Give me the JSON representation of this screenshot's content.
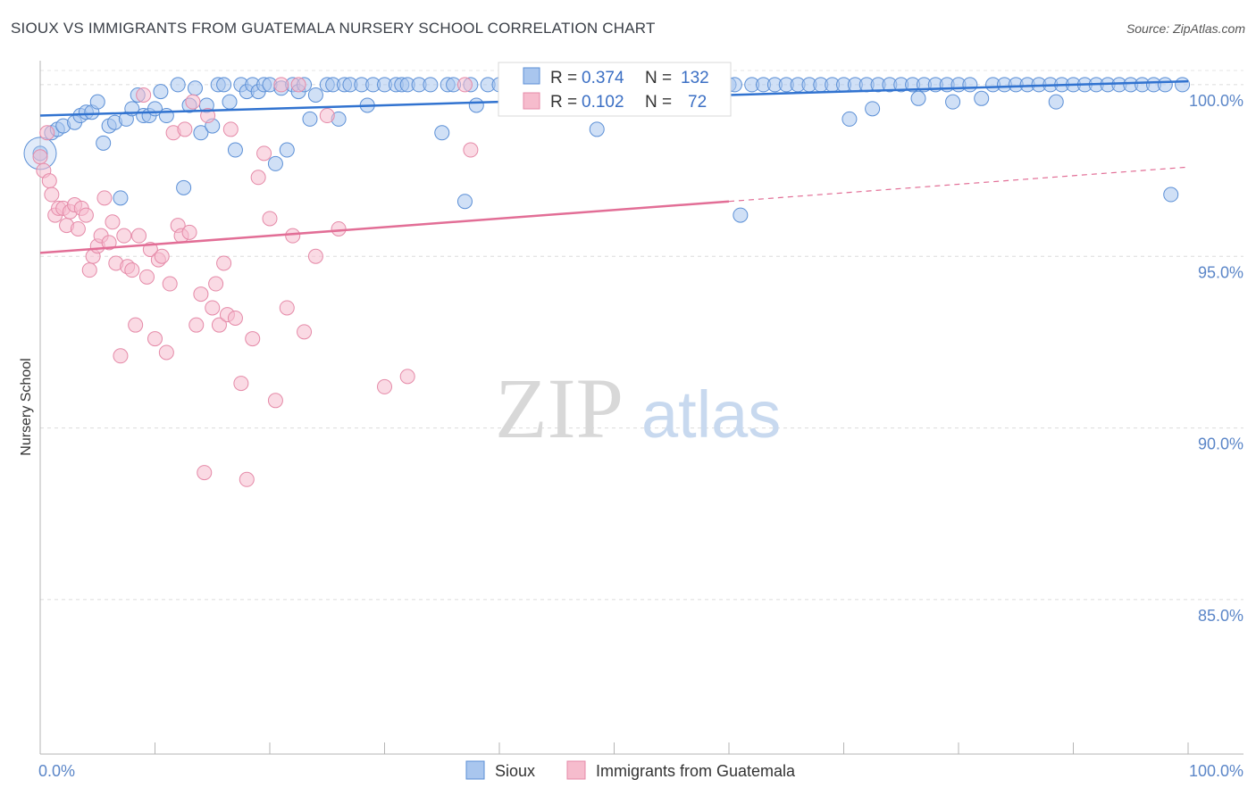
{
  "title": "SIOUX VS IMMIGRANTS FROM GUATEMALA NURSERY SCHOOL CORRELATION CHART",
  "source": "Source: ZipAtlas.com",
  "watermark": {
    "zip": "ZIP",
    "atlas": "atlas"
  },
  "stats": {
    "sioux": {
      "r_label": "R =",
      "r_value": "0.374",
      "n_label": "N =",
      "n_value": "132"
    },
    "guatemala": {
      "r_label": "R =",
      "r_value": "0.102",
      "n_label": "N =",
      "n_value": "72"
    }
  },
  "chart_data": {
    "type": "scatter",
    "title": "SIOUX VS IMMIGRANTS FROM GUATEMALA NURSERY SCHOOL CORRELATION CHART",
    "xlabel": "",
    "ylabel": "Nursery School",
    "xlim": [
      0,
      100
    ],
    "ylim": [
      80.5,
      100.7
    ],
    "x_tick_labels": [
      "0.0%",
      "100.0%"
    ],
    "y_ticks": [
      100,
      95,
      90,
      85
    ],
    "y_tick_labels": [
      "100.0%",
      "95.0%",
      "90.0%",
      "85.0%"
    ],
    "grid": "horizontal-dashed",
    "legend": [
      "Sioux",
      "Immigrants from Guatemala"
    ],
    "colors": {
      "sioux": "#5b8fd6",
      "sioux_fill": "#a9c6ee",
      "sioux_line": "#3173d0",
      "guatemala": "#e58aa8",
      "guatemala_fill": "#f6bccd",
      "guatemala_line": "#e26e96",
      "tick": "#5b86c8"
    },
    "series": [
      {
        "name": "Sioux",
        "trend": {
          "x0": 0,
          "y0": 99.1,
          "x1": 100,
          "y1": 100.1
        },
        "points": [
          [
            0,
            98.0
          ],
          [
            1,
            98.6
          ],
          [
            1.5,
            98.7
          ],
          [
            2,
            98.8
          ],
          [
            3,
            98.9
          ],
          [
            3.5,
            99.1
          ],
          [
            4,
            99.2
          ],
          [
            4.5,
            99.2
          ],
          [
            5,
            99.5
          ],
          [
            5.5,
            98.3
          ],
          [
            6,
            98.8
          ],
          [
            6.5,
            98.9
          ],
          [
            7,
            96.7
          ],
          [
            7.5,
            99.0
          ],
          [
            8,
            99.3
          ],
          [
            8.5,
            99.7
          ],
          [
            9,
            99.1
          ],
          [
            9.5,
            99.1
          ],
          [
            10,
            99.3
          ],
          [
            10.5,
            99.8
          ],
          [
            11,
            99.1
          ],
          [
            12,
            100.0
          ],
          [
            12.5,
            97.0
          ],
          [
            13,
            99.4
          ],
          [
            13.5,
            99.9
          ],
          [
            14,
            98.6
          ],
          [
            14.5,
            99.4
          ],
          [
            15,
            98.8
          ],
          [
            15.5,
            100.0
          ],
          [
            16,
            100.0
          ],
          [
            16.5,
            99.5
          ],
          [
            17,
            98.1
          ],
          [
            17.5,
            100.0
          ],
          [
            18,
            99.8
          ],
          [
            18.5,
            100.0
          ],
          [
            19,
            99.8
          ],
          [
            19.5,
            100.0
          ],
          [
            20,
            100.0
          ],
          [
            20.5,
            97.7
          ],
          [
            21,
            99.9
          ],
          [
            21.5,
            98.1
          ],
          [
            22,
            100.0
          ],
          [
            22.5,
            99.8
          ],
          [
            23,
            100.0
          ],
          [
            23.5,
            99.0
          ],
          [
            24,
            99.7
          ],
          [
            25,
            100.0
          ],
          [
            25.5,
            100.0
          ],
          [
            26,
            99.0
          ],
          [
            26.5,
            100.0
          ],
          [
            27,
            100.0
          ],
          [
            28,
            100.0
          ],
          [
            28.5,
            99.4
          ],
          [
            29,
            100.0
          ],
          [
            30,
            100.0
          ],
          [
            31,
            100.0
          ],
          [
            31.5,
            100.0
          ],
          [
            32,
            100.0
          ],
          [
            33,
            100.0
          ],
          [
            34,
            100.0
          ],
          [
            35,
            98.6
          ],
          [
            35.5,
            100.0
          ],
          [
            36,
            100.0
          ],
          [
            37,
            96.6
          ],
          [
            37.5,
            100.0
          ],
          [
            38,
            99.4
          ],
          [
            39,
            100.0
          ],
          [
            40,
            100.0
          ],
          [
            41,
            100.0
          ],
          [
            42,
            100.0
          ],
          [
            43,
            100.0
          ],
          [
            44,
            100.0
          ],
          [
            45,
            99.4
          ],
          [
            46,
            100.0
          ],
          [
            47,
            99.4
          ],
          [
            48,
            100.0
          ],
          [
            48.5,
            98.7
          ],
          [
            50,
            100.0
          ],
          [
            51,
            100.0
          ],
          [
            52,
            100.0
          ],
          [
            53,
            100.0
          ],
          [
            54,
            100.0
          ],
          [
            55,
            100.0
          ],
          [
            56,
            100.0
          ],
          [
            57,
            100.0
          ],
          [
            58,
            100.0
          ],
          [
            59,
            100.0
          ],
          [
            60,
            100.0
          ],
          [
            60.5,
            100.0
          ],
          [
            61,
            96.2
          ],
          [
            62,
            100.0
          ],
          [
            63,
            100.0
          ],
          [
            64,
            100.0
          ],
          [
            65,
            100.0
          ],
          [
            66,
            100.0
          ],
          [
            67,
            100.0
          ],
          [
            68,
            100.0
          ],
          [
            69,
            100.0
          ],
          [
            70,
            100.0
          ],
          [
            70.5,
            99.0
          ],
          [
            71,
            100.0
          ],
          [
            72,
            100.0
          ],
          [
            72.5,
            99.3
          ],
          [
            73,
            100.0
          ],
          [
            74,
            100.0
          ],
          [
            75,
            100.0
          ],
          [
            76,
            100.0
          ],
          [
            76.5,
            99.6
          ],
          [
            77,
            100.0
          ],
          [
            78,
            100.0
          ],
          [
            79,
            100.0
          ],
          [
            79.5,
            99.5
          ],
          [
            80,
            100.0
          ],
          [
            81,
            100.0
          ],
          [
            82,
            99.6
          ],
          [
            83,
            100.0
          ],
          [
            84,
            100.0
          ],
          [
            85,
            100.0
          ],
          [
            86,
            100.0
          ],
          [
            87,
            100.0
          ],
          [
            88,
            100.0
          ],
          [
            88.5,
            99.5
          ],
          [
            89,
            100.0
          ],
          [
            90,
            100.0
          ],
          [
            91,
            100.0
          ],
          [
            92,
            100.0
          ],
          [
            93,
            100.0
          ],
          [
            94,
            100.0
          ],
          [
            95,
            100.0
          ],
          [
            96,
            100.0
          ],
          [
            97,
            100.0
          ],
          [
            98,
            100.0
          ],
          [
            98.5,
            96.8
          ],
          [
            99.5,
            100.0
          ]
        ]
      },
      {
        "name": "Immigrants from Guatemala",
        "trend": {
          "x0": 0,
          "y0": 95.1,
          "x1": 60,
          "y1": 96.6,
          "dash_x1": 100,
          "dash_y1": 97.6
        },
        "points": [
          [
            0,
            97.9
          ],
          [
            0.3,
            97.5
          ],
          [
            0.6,
            98.6
          ],
          [
            0.8,
            97.2
          ],
          [
            1,
            96.8
          ],
          [
            1.3,
            96.2
          ],
          [
            1.6,
            96.4
          ],
          [
            2,
            96.4
          ],
          [
            2.3,
            95.9
          ],
          [
            2.6,
            96.3
          ],
          [
            3,
            96.5
          ],
          [
            3.3,
            95.8
          ],
          [
            3.6,
            96.4
          ],
          [
            4,
            96.2
          ],
          [
            4.3,
            94.6
          ],
          [
            4.6,
            95.0
          ],
          [
            5,
            95.3
          ],
          [
            5.3,
            95.6
          ],
          [
            5.6,
            96.7
          ],
          [
            6,
            95.4
          ],
          [
            6.3,
            96.0
          ],
          [
            6.6,
            94.8
          ],
          [
            7,
            92.1
          ],
          [
            7.3,
            95.6
          ],
          [
            7.6,
            94.7
          ],
          [
            8,
            94.6
          ],
          [
            8.3,
            93.0
          ],
          [
            8.6,
            95.6
          ],
          [
            9,
            99.7
          ],
          [
            9.3,
            94.4
          ],
          [
            9.6,
            95.2
          ],
          [
            10,
            92.6
          ],
          [
            10.3,
            94.9
          ],
          [
            10.6,
            95.0
          ],
          [
            11,
            92.2
          ],
          [
            11.3,
            94.2
          ],
          [
            11.6,
            98.6
          ],
          [
            12,
            95.9
          ],
          [
            12.3,
            95.6
          ],
          [
            12.6,
            98.7
          ],
          [
            13,
            95.7
          ],
          [
            13.3,
            99.5
          ],
          [
            13.6,
            93.0
          ],
          [
            14,
            93.9
          ],
          [
            14.3,
            88.7
          ],
          [
            14.6,
            99.1
          ],
          [
            15,
            93.5
          ],
          [
            15.3,
            94.2
          ],
          [
            15.6,
            93.0
          ],
          [
            16,
            94.8
          ],
          [
            16.3,
            93.3
          ],
          [
            16.6,
            98.7
          ],
          [
            17,
            93.2
          ],
          [
            17.5,
            91.3
          ],
          [
            18,
            88.5
          ],
          [
            18.5,
            92.6
          ],
          [
            19,
            97.3
          ],
          [
            19.5,
            98.0
          ],
          [
            20,
            96.1
          ],
          [
            20.5,
            90.8
          ],
          [
            21,
            100.0
          ],
          [
            21.5,
            93.5
          ],
          [
            22,
            95.6
          ],
          [
            22.5,
            100.0
          ],
          [
            23,
            92.8
          ],
          [
            24,
            95.0
          ],
          [
            25,
            99.1
          ],
          [
            26,
            95.8
          ],
          [
            30,
            91.2
          ],
          [
            32,
            91.5
          ],
          [
            37,
            100.0
          ],
          [
            37.5,
            98.1
          ]
        ]
      }
    ]
  },
  "legend": {
    "sioux_label": "Sioux",
    "guatemala_label": "Immigrants from Guatemala"
  }
}
